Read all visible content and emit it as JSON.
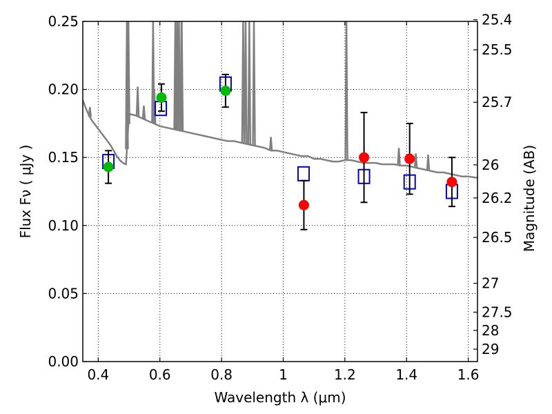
{
  "chart_data": {
    "type": "scatter",
    "xlabel": "Wavelength  λ (μm)",
    "ylabel": "Flux  Fν  ( μJy )",
    "y2label": "Magnitude (AB)",
    "xlim": [
      0.35,
      1.63
    ],
    "ylim": [
      0.0,
      0.25
    ],
    "x_ticks": [
      0.4,
      0.6,
      0.8,
      1.0,
      1.2,
      1.4,
      1.6
    ],
    "x_tick_labels": [
      "0.4",
      "0.6",
      "0.8",
      "1",
      "1.2",
      "1.4",
      "1.6"
    ],
    "y_ticks": [
      0.0,
      0.05,
      0.1,
      0.15,
      0.2,
      0.25
    ],
    "y_tick_labels": [
      "0.00",
      "0.05",
      "0.10",
      "0.15",
      "0.20",
      "0.25"
    ],
    "mag_ticks": [
      25.4,
      25.5,
      25.7,
      26,
      26.2,
      26.5,
      27,
      27.5,
      28,
      29
    ],
    "mag_tick_labels": [
      "25.4",
      "25.5",
      "25.7",
      "26",
      "26.2",
      "26.5",
      "27",
      "27.5",
      "28",
      "29"
    ],
    "grid": true,
    "colors": {
      "model": "#808080",
      "optical_points": "#00bb00",
      "nir_points": "#ff0000",
      "model_boxes": "#0000cc",
      "errorbars": "#000000"
    },
    "series": [
      {
        "kind": "line",
        "x": [
          0.35,
          0.36,
          0.37,
          0.38,
          0.39,
          0.4,
          0.41,
          0.42,
          0.43,
          0.44,
          0.45,
          0.46,
          0.47,
          0.48,
          0.49,
          0.5,
          0.52,
          0.54,
          0.56,
          0.58,
          0.6,
          0.62,
          0.64,
          0.66,
          0.68,
          0.7,
          0.72,
          0.74,
          0.76,
          0.78,
          0.8,
          0.82,
          0.84,
          0.86,
          0.88,
          0.9,
          0.92,
          0.94,
          0.96,
          0.98,
          1.0,
          1.02,
          1.04,
          1.06,
          1.08,
          1.1,
          1.12,
          1.14,
          1.16,
          1.18,
          1.2,
          1.22,
          1.24,
          1.26,
          1.28,
          1.3,
          1.32,
          1.34,
          1.36,
          1.38,
          1.4,
          1.42,
          1.44,
          1.46,
          1.48,
          1.5,
          1.52,
          1.54,
          1.56,
          1.58,
          1.6,
          1.63
        ],
        "y": [
          0.192,
          0.186,
          0.181,
          0.177,
          0.174,
          0.171,
          0.168,
          0.165,
          0.162,
          0.159,
          0.155,
          0.151,
          0.148,
          0.146,
          0.145,
          0.182,
          0.181,
          0.179,
          0.177,
          0.175,
          0.173,
          0.172,
          0.171,
          0.17,
          0.169,
          0.168,
          0.167,
          0.166,
          0.165,
          0.164,
          0.163,
          0.162,
          0.162,
          0.161,
          0.16,
          0.159,
          0.158,
          0.157,
          0.155,
          0.155,
          0.154,
          0.153,
          0.152,
          0.151,
          0.151,
          0.149,
          0.149,
          0.148,
          0.147,
          0.147,
          0.148,
          0.148,
          0.147,
          0.146,
          0.146,
          0.146,
          0.145,
          0.145,
          0.145,
          0.144,
          0.144,
          0.143,
          0.142,
          0.141,
          0.14,
          0.139,
          0.139,
          0.138,
          0.137,
          0.136,
          0.136,
          0.135
        ]
      },
      {
        "kind": "spikes",
        "x": [
          0.373,
          0.493,
          0.498,
          0.5,
          0.528,
          0.548,
          0.578,
          0.582,
          0.65,
          0.653,
          0.656,
          0.662,
          0.67,
          0.671,
          0.87,
          0.878,
          0.89,
          0.905,
          0.96,
          1.205,
          1.375,
          1.43,
          1.47
        ],
        "y": [
          0.187,
          0.25,
          0.25,
          0.18,
          0.202,
          0.188,
          0.25,
          0.2,
          0.25,
          0.2,
          0.25,
          0.25,
          0.25,
          0.25,
          0.25,
          0.25,
          0.25,
          0.25,
          0.165,
          0.25,
          0.157,
          0.153,
          0.152
        ]
      },
      {
        "kind": "boxes",
        "x": [
          0.433,
          0.603,
          0.813,
          1.066,
          1.262,
          1.41,
          1.547
        ],
        "y": [
          0.147,
          0.186,
          0.204,
          0.138,
          0.136,
          0.132,
          0.125
        ]
      },
      {
        "kind": "points",
        "color_key": "optical_points",
        "x": [
          0.433,
          0.605,
          0.813
        ],
        "y": [
          0.143,
          0.194,
          0.199
        ],
        "err": [
          0.012,
          0.01,
          0.012
        ]
      },
      {
        "kind": "points",
        "color_key": "nir_points",
        "x": [
          1.067,
          1.262,
          1.41,
          1.547
        ],
        "y": [
          0.115,
          0.15,
          0.149,
          0.132
        ],
        "err": [
          0.018,
          0.033,
          0.026,
          0.018
        ]
      }
    ]
  }
}
